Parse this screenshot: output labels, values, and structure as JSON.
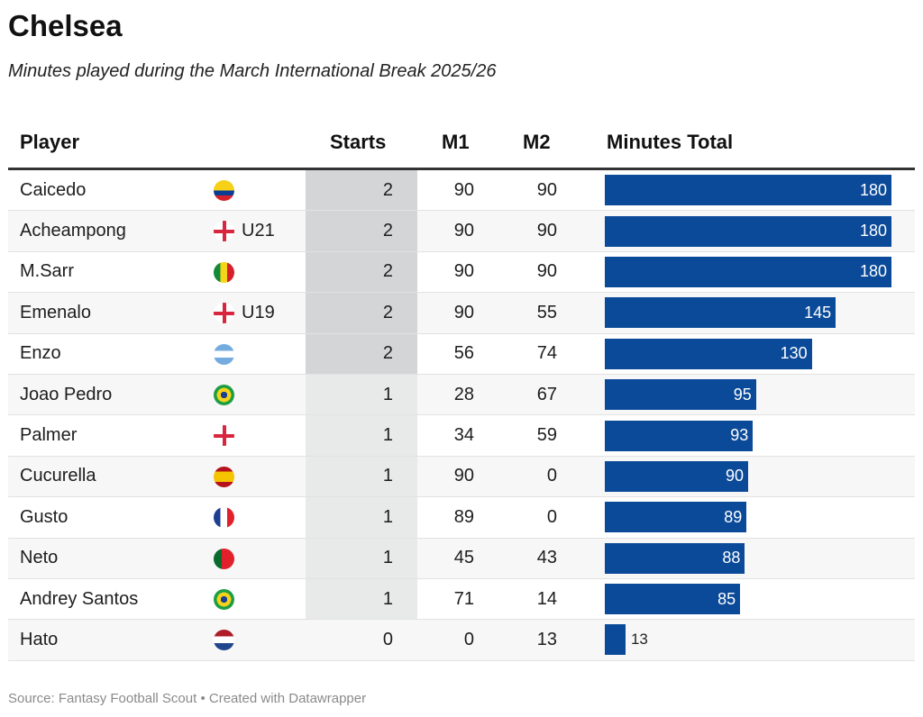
{
  "title": "Chelsea",
  "subtitle": "Minutes played during the March International Break 2025/26",
  "source": "Source: Fantasy Football Scout • Created with Datawrapper",
  "colors": {
    "bar": "#0b4a99",
    "starts_2": "#d4d5d7",
    "starts_1": "#e8e9e9"
  },
  "chart_data": {
    "type": "table",
    "columns": [
      "Player",
      "Starts",
      "M1",
      "M2",
      "Minutes Total"
    ],
    "rows": [
      {
        "player": "Caicedo",
        "flag": "ecuador-flag-icon",
        "extra": "",
        "starts": 2,
        "m1": 90,
        "m2": 90,
        "total": 180
      },
      {
        "player": "Acheampong",
        "flag": "england-flag-icon",
        "extra": "U21",
        "starts": 2,
        "m1": 90,
        "m2": 90,
        "total": 180
      },
      {
        "player": "M.Sarr",
        "flag": "senegal-flag-icon",
        "extra": "",
        "starts": 2,
        "m1": 90,
        "m2": 90,
        "total": 180
      },
      {
        "player": "Emenalo",
        "flag": "england-flag-icon",
        "extra": "U19",
        "starts": 2,
        "m1": 90,
        "m2": 55,
        "total": 145
      },
      {
        "player": "Enzo",
        "flag": "argentina-flag-icon",
        "extra": "",
        "starts": 2,
        "m1": 56,
        "m2": 74,
        "total": 130
      },
      {
        "player": "Joao Pedro",
        "flag": "brazil-flag-icon",
        "extra": "",
        "starts": 1,
        "m1": 28,
        "m2": 67,
        "total": 95
      },
      {
        "player": "Palmer",
        "flag": "england-flag-icon",
        "extra": "",
        "starts": 1,
        "m1": 34,
        "m2": 59,
        "total": 93
      },
      {
        "player": "Cucurella",
        "flag": "spain-flag-icon",
        "extra": "",
        "starts": 1,
        "m1": 90,
        "m2": 0,
        "total": 90
      },
      {
        "player": "Gusto",
        "flag": "france-flag-icon",
        "extra": "",
        "starts": 1,
        "m1": 89,
        "m2": 0,
        "total": 89
      },
      {
        "player": "Neto",
        "flag": "portugal-flag-icon",
        "extra": "",
        "starts": 1,
        "m1": 45,
        "m2": 43,
        "total": 88
      },
      {
        "player": "Andrey Santos",
        "flag": "brazil-flag-icon",
        "extra": "",
        "starts": 1,
        "m1": 71,
        "m2": 14,
        "total": 85
      },
      {
        "player": "Hato",
        "flag": "netherlands-flag-icon",
        "extra": "",
        "starts": 0,
        "m1": 0,
        "m2": 13,
        "total": 13
      }
    ],
    "bar_max": 180
  }
}
